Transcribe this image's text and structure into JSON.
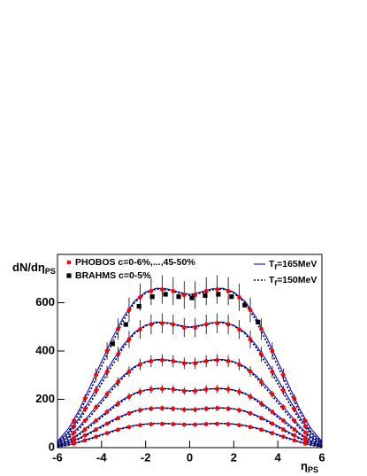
{
  "chart_data": {
    "type": "line",
    "x_label": "ηPS",
    "y_label": "dN/dηPS",
    "xlim": [
      -6,
      6
    ],
    "ylim": [
      0,
      800
    ],
    "xticks": [
      -6,
      -4,
      -2,
      0,
      2,
      4,
      6
    ],
    "yticks": [
      0,
      200,
      400,
      600
    ],
    "series": [
      {
        "name": "PHOBOS c=0-6%,...,45-50%",
        "color": "#ff0000",
        "marker": "circle",
        "x": [
          -5.25,
          -4.75,
          -4.25,
          -3.75,
          -3.25,
          -2.75,
          -2.25,
          -1.75,
          -1.25,
          -0.75,
          -0.25,
          0.25,
          0.75,
          1.25,
          1.75,
          2.25,
          2.75,
          3.25,
          3.75,
          4.25,
          4.75,
          5.25
        ],
        "sets": [
          {
            "values": [
              111,
              203,
              301,
              400,
              491,
              570,
              622,
              648,
              655,
              648,
              632,
              632,
              648,
              655,
              648,
              622,
              570,
              491,
              400,
              301,
              203,
              111
            ],
            "errors": [
              10,
              18,
              27,
              36,
              44,
              51,
              56,
              58,
              59,
              58,
              57,
              57,
              58,
              59,
              58,
              56,
              51,
              44,
              36,
              27,
              18,
              10
            ]
          },
          {
            "values": [
              88,
              160,
              237,
              314,
              386,
              448,
              489,
              510,
              515,
              510,
              497,
              497,
              510,
              515,
              510,
              489,
              448,
              386,
              314,
              237,
              160,
              88
            ],
            "errors": [
              7,
              13,
              19,
              25,
              31,
              36,
              39,
              41,
              41,
              41,
              40,
              40,
              41,
              41,
              41,
              39,
              36,
              31,
              25,
              19,
              13,
              7
            ]
          },
          {
            "values": [
              62,
              112,
              167,
              221,
              272,
              315,
              344,
              358,
              362,
              358,
              349,
              349,
              358,
              362,
              358,
              344,
              315,
              272,
              221,
              167,
              112,
              62
            ],
            "errors": [
              4,
              8,
              12,
              15,
              19,
              22,
              24,
              25,
              25,
              25,
              24,
              24,
              25,
              25,
              25,
              24,
              22,
              19,
              15,
              12,
              8,
              4
            ]
          },
          {
            "values": [
              41,
              75,
              112,
              148,
              182,
              211,
              231,
              241,
              243,
              241,
              234,
              234,
              241,
              243,
              241,
              231,
              211,
              182,
              148,
              112,
              75,
              41
            ],
            "errors": [
              3,
              5,
              8,
              10,
              13,
              15,
              16,
              17,
              17,
              17,
              16,
              16,
              17,
              17,
              17,
              16,
              15,
              13,
              10,
              8,
              5,
              3
            ]
          },
          {
            "values": [
              28,
              51,
              75,
              99,
              122,
              142,
              155,
              161,
              163,
              161,
              157,
              157,
              161,
              163,
              161,
              155,
              142,
              122,
              99,
              75,
              51,
              28
            ],
            "errors": [
              2,
              4,
              5,
              7,
              9,
              10,
              11,
              11,
              11,
              11,
              11,
              11,
              11,
              11,
              11,
              11,
              10,
              9,
              7,
              5,
              4,
              2
            ]
          },
          {
            "values": [
              17,
              30,
              45,
              60,
              74,
              85,
              93,
              97,
              98,
              97,
              95,
              95,
              97,
              98,
              97,
              93,
              85,
              74,
              60,
              45,
              30,
              17
            ],
            "errors": [
              1,
              2,
              3,
              4,
              5,
              6,
              7,
              7,
              7,
              7,
              7,
              7,
              7,
              7,
              7,
              7,
              6,
              5,
              4,
              3,
              2,
              1
            ]
          }
        ]
      },
      {
        "name": "BRAHMS c=0-5%",
        "color": "#000000",
        "marker": "square",
        "x": [
          -3.5,
          -2.9,
          -2.3,
          -1.7,
          -1.1,
          -0.5,
          0.1,
          0.7,
          1.3,
          1.9,
          2.5,
          3.1
        ],
        "sets": [
          {
            "values": [
              430,
              510,
              585,
              625,
              635,
              625,
              620,
              630,
              635,
              625,
              590,
              520
            ]
          }
        ]
      },
      {
        "name": "Tf=165MeV",
        "color": "#0000ff",
        "line": "solid",
        "x": [
          -6,
          -5.5,
          -5,
          -4.5,
          -4,
          -3.5,
          -3,
          -2.5,
          -2,
          -1.5,
          -1,
          -0.5,
          0,
          0.5,
          1,
          1.5,
          2,
          2.5,
          3,
          3.5,
          4,
          4.5,
          5,
          5.5,
          6
        ],
        "sets": [
          {
            "values": [
              26,
              79,
              158,
              257,
              356,
              455,
              541,
              607,
              644,
              660,
              657,
              644,
              634,
              644,
              657,
              660,
              644,
              607,
              541,
              455,
              356,
              257,
              158,
              79,
              26
            ]
          },
          {
            "values": [
              21,
              62,
              125,
              203,
              281,
              359,
              426,
              478,
              507,
              520,
              517,
              507,
              499,
              507,
              517,
              520,
              507,
              478,
              426,
              359,
              281,
              203,
              125,
              62,
              21
            ]
          },
          {
            "values": [
              15,
              44,
              88,
              142,
              197,
              252,
              299,
              336,
              356,
              365,
              363,
              356,
              350,
              356,
              363,
              365,
              356,
              336,
              299,
              252,
              197,
              142,
              88,
              44,
              15
            ]
          },
          {
            "values": [
              10,
              29,
              59,
              96,
              132,
              169,
              201,
              225,
              239,
              245,
              244,
              239,
              235,
              239,
              244,
              245,
              239,
              225,
              201,
              169,
              132,
              96,
              59,
              29,
              10
            ]
          },
          {
            "values": [
              7,
              20,
              40,
              64,
              89,
              114,
              135,
              152,
              161,
              165,
              164,
              161,
              158,
              161,
              164,
              165,
              161,
              152,
              135,
              114,
              89,
              64,
              40,
              20,
              7
            ]
          },
          {
            "values": [
              4,
              12,
              24,
              39,
              54,
              69,
              82,
              92,
              98,
              100,
              100,
              98,
              96,
              98,
              100,
              100,
              98,
              92,
              82,
              69,
              54,
              39,
              24,
              12,
              4
            ]
          }
        ]
      },
      {
        "name": "Tf=150MeV",
        "color": "#000000",
        "line": "dotted",
        "x": [
          -6,
          -5.5,
          -5,
          -4.5,
          -4,
          -3.5,
          -3,
          -2.5,
          -2,
          -1.5,
          -1,
          -0.5,
          0,
          0.5,
          1,
          1.5,
          2,
          2.5,
          3,
          3.5,
          4,
          4.5,
          5,
          5.5,
          6
        ],
        "sets": [
          {
            "values": [
              20,
              66,
              145,
              238,
              337,
              436,
              528,
              601,
              640,
              657,
              653,
              640,
              630,
              640,
              653,
              657,
              640,
              601,
              528,
              436,
              337,
              238,
              145,
              66,
              20
            ]
          },
          {
            "values": [
              16,
              52,
              114,
              187,
              265,
              343,
              416,
              473,
              504,
              517,
              515,
              504,
              497,
              504,
              515,
              517,
              504,
              473,
              416,
              343,
              265,
              187,
              114,
              52,
              16
            ]
          },
          {
            "values": [
              11,
              37,
              80,
              131,
              186,
              241,
              292,
              332,
              354,
              363,
              361,
              354,
              349,
              354,
              361,
              363,
              354,
              332,
              292,
              241,
              186,
              131,
              80,
              37,
              11
            ]
          },
          {
            "values": [
              7,
              25,
              54,
              88,
              125,
              162,
              196,
              223,
              238,
              244,
              243,
              238,
              234,
              238,
              243,
              244,
              238,
              223,
              196,
              162,
              125,
              88,
              54,
              25,
              7
            ]
          },
          {
            "values": [
              5,
              17,
              36,
              59,
              84,
              109,
              132,
              150,
              160,
              164,
              163,
              160,
              158,
              160,
              163,
              164,
              160,
              150,
              132,
              109,
              84,
              59,
              36,
              17,
              5
            ]
          },
          {
            "values": [
              3,
              10,
              22,
              36,
              51,
              66,
              80,
              91,
              97,
              100,
              99,
              97,
              96,
              97,
              99,
              100,
              97,
              91,
              80,
              66,
              51,
              36,
              22,
              10,
              3
            ]
          }
        ]
      }
    ]
  }
}
